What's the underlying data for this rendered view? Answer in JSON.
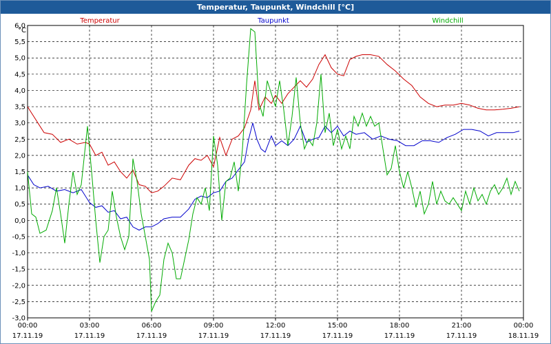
{
  "window": {
    "title": "Temperatur, Taupunkt, Windchill [°C]"
  },
  "chart_data": {
    "type": "line",
    "title": "Temperatur, Taupunkt, Windchill [°C]",
    "ylabel": "°C",
    "ylim": [
      -3.0,
      6.0
    ],
    "yticks": [
      "-3,0",
      "-2,5",
      "-2,0",
      "-1,5",
      "-1,0",
      "-0,5",
      "0,0",
      "0,5",
      "1,0",
      "1,5",
      "2,0",
      "2,5",
      "3,0",
      "3,5",
      "4,0",
      "4,5",
      "5,0",
      "5,5",
      "6,0"
    ],
    "xlim": [
      0,
      24
    ],
    "xticks": [
      {
        "time": "00:00",
        "date": "17.11.19"
      },
      {
        "time": "03:00",
        "date": "17.11.19"
      },
      {
        "time": "06:00",
        "date": "17.11.19"
      },
      {
        "time": "09:00",
        "date": "17.11.19"
      },
      {
        "time": "12:00",
        "date": "17.11.19"
      },
      {
        "time": "15:00",
        "date": "17.11.19"
      },
      {
        "time": "18:00",
        "date": "17.11.19"
      },
      {
        "time": "21:00",
        "date": "17.11.19"
      },
      {
        "time": "00:00",
        "date": "18.11.19"
      }
    ],
    "grid": true,
    "legend_placement": "top",
    "series": [
      {
        "name": "Temperatur",
        "color": "#cc0000",
        "points": [
          [
            0,
            3.5
          ],
          [
            0.5,
            3.0
          ],
          [
            0.8,
            2.7
          ],
          [
            1.2,
            2.65
          ],
          [
            1.6,
            2.4
          ],
          [
            2.0,
            2.5
          ],
          [
            2.4,
            2.35
          ],
          [
            2.8,
            2.4
          ],
          [
            3.0,
            2.35
          ],
          [
            3.3,
            2.0
          ],
          [
            3.6,
            2.1
          ],
          [
            3.9,
            1.7
          ],
          [
            4.2,
            1.8
          ],
          [
            4.5,
            1.5
          ],
          [
            4.8,
            1.3
          ],
          [
            5.1,
            1.55
          ],
          [
            5.4,
            1.1
          ],
          [
            5.7,
            1.05
          ],
          [
            6.0,
            0.85
          ],
          [
            6.3,
            0.9
          ],
          [
            6.6,
            1.05
          ],
          [
            7.0,
            1.3
          ],
          [
            7.4,
            1.25
          ],
          [
            7.8,
            1.7
          ],
          [
            8.1,
            1.9
          ],
          [
            8.4,
            1.85
          ],
          [
            8.7,
            2.0
          ],
          [
            9.0,
            1.65
          ],
          [
            9.3,
            2.55
          ],
          [
            9.6,
            2.0
          ],
          [
            9.9,
            2.5
          ],
          [
            10.2,
            2.6
          ],
          [
            10.5,
            2.85
          ],
          [
            10.8,
            3.4
          ],
          [
            11.0,
            4.3
          ],
          [
            11.2,
            3.4
          ],
          [
            11.5,
            3.8
          ],
          [
            11.8,
            3.6
          ],
          [
            12.0,
            3.85
          ],
          [
            12.3,
            3.6
          ],
          [
            12.6,
            3.9
          ],
          [
            12.9,
            4.1
          ],
          [
            13.2,
            4.3
          ],
          [
            13.5,
            4.1
          ],
          [
            13.8,
            4.35
          ],
          [
            14.1,
            4.8
          ],
          [
            14.4,
            5.1
          ],
          [
            14.7,
            4.7
          ],
          [
            15.0,
            4.5
          ],
          [
            15.3,
            4.45
          ],
          [
            15.6,
            4.95
          ],
          [
            15.9,
            5.05
          ],
          [
            16.2,
            5.1
          ],
          [
            16.6,
            5.1
          ],
          [
            17.0,
            5.05
          ],
          [
            17.4,
            4.8
          ],
          [
            17.8,
            4.6
          ],
          [
            18.2,
            4.35
          ],
          [
            18.6,
            4.15
          ],
          [
            19.0,
            3.8
          ],
          [
            19.4,
            3.6
          ],
          [
            19.8,
            3.5
          ],
          [
            20.2,
            3.55
          ],
          [
            20.6,
            3.55
          ],
          [
            21.0,
            3.6
          ],
          [
            21.4,
            3.55
          ],
          [
            21.8,
            3.45
          ],
          [
            22.2,
            3.4
          ],
          [
            22.6,
            3.4
          ],
          [
            23.0,
            3.42
          ],
          [
            23.4,
            3.45
          ],
          [
            23.8,
            3.5
          ]
        ]
      },
      {
        "name": "Taupunkt",
        "color": "#0000cc",
        "points": [
          [
            0,
            1.4
          ],
          [
            0.3,
            1.1
          ],
          [
            0.6,
            1.0
          ],
          [
            1.0,
            1.05
          ],
          [
            1.4,
            0.9
          ],
          [
            1.8,
            0.95
          ],
          [
            2.2,
            0.85
          ],
          [
            2.6,
            0.95
          ],
          [
            3.0,
            0.55
          ],
          [
            3.3,
            0.4
          ],
          [
            3.6,
            0.45
          ],
          [
            3.9,
            0.25
          ],
          [
            4.2,
            0.3
          ],
          [
            4.5,
            0.05
          ],
          [
            4.8,
            0.1
          ],
          [
            5.1,
            -0.2
          ],
          [
            5.4,
            -0.3
          ],
          [
            5.7,
            -0.2
          ],
          [
            6.0,
            -0.2
          ],
          [
            6.3,
            -0.1
          ],
          [
            6.6,
            0.05
          ],
          [
            7.0,
            0.1
          ],
          [
            7.4,
            0.1
          ],
          [
            7.8,
            0.35
          ],
          [
            8.1,
            0.65
          ],
          [
            8.4,
            0.75
          ],
          [
            8.7,
            0.7
          ],
          [
            9.0,
            0.85
          ],
          [
            9.3,
            0.9
          ],
          [
            9.6,
            1.2
          ],
          [
            9.9,
            1.3
          ],
          [
            10.2,
            1.55
          ],
          [
            10.5,
            1.8
          ],
          [
            10.7,
            2.5
          ],
          [
            10.9,
            3.0
          ],
          [
            11.1,
            2.5
          ],
          [
            11.3,
            2.2
          ],
          [
            11.5,
            2.1
          ],
          [
            11.8,
            2.6
          ],
          [
            12.0,
            2.3
          ],
          [
            12.3,
            2.45
          ],
          [
            12.6,
            2.3
          ],
          [
            12.9,
            2.5
          ],
          [
            13.2,
            2.9
          ],
          [
            13.5,
            2.4
          ],
          [
            13.8,
            2.5
          ],
          [
            14.1,
            2.55
          ],
          [
            14.4,
            2.9
          ],
          [
            14.7,
            2.7
          ],
          [
            15.0,
            2.9
          ],
          [
            15.3,
            2.6
          ],
          [
            15.6,
            2.75
          ],
          [
            15.9,
            2.65
          ],
          [
            16.3,
            2.7
          ],
          [
            16.7,
            2.5
          ],
          [
            17.1,
            2.6
          ],
          [
            17.5,
            2.5
          ],
          [
            17.9,
            2.45
          ],
          [
            18.3,
            2.3
          ],
          [
            18.7,
            2.3
          ],
          [
            19.1,
            2.45
          ],
          [
            19.5,
            2.45
          ],
          [
            19.9,
            2.4
          ],
          [
            20.3,
            2.55
          ],
          [
            20.7,
            2.65
          ],
          [
            21.1,
            2.8
          ],
          [
            21.5,
            2.8
          ],
          [
            21.9,
            2.75
          ],
          [
            22.3,
            2.6
          ],
          [
            22.7,
            2.7
          ],
          [
            23.1,
            2.7
          ],
          [
            23.5,
            2.7
          ],
          [
            23.8,
            2.75
          ]
        ]
      },
      {
        "name": "Windchill",
        "color": "#00aa00",
        "points": [
          [
            0,
            1.5
          ],
          [
            0.2,
            0.2
          ],
          [
            0.4,
            0.1
          ],
          [
            0.6,
            -0.4
          ],
          [
            0.9,
            -0.3
          ],
          [
            1.2,
            0.3
          ],
          [
            1.4,
            1.0
          ],
          [
            1.6,
            0.2
          ],
          [
            1.8,
            -0.7
          ],
          [
            2.0,
            0.5
          ],
          [
            2.2,
            1.5
          ],
          [
            2.4,
            0.8
          ],
          [
            2.6,
            1.1
          ],
          [
            2.9,
            2.9
          ],
          [
            3.1,
            1.5
          ],
          [
            3.3,
            0.0
          ],
          [
            3.5,
            -1.3
          ],
          [
            3.7,
            -0.5
          ],
          [
            3.9,
            -0.3
          ],
          [
            4.1,
            0.9
          ],
          [
            4.3,
            0.1
          ],
          [
            4.5,
            -0.5
          ],
          [
            4.7,
            -0.9
          ],
          [
            4.9,
            -0.5
          ],
          [
            5.1,
            1.9
          ],
          [
            5.3,
            1.2
          ],
          [
            5.5,
            0.2
          ],
          [
            5.7,
            -0.5
          ],
          [
            5.9,
            -1.2
          ],
          [
            6.0,
            -2.8
          ],
          [
            6.2,
            -2.5
          ],
          [
            6.4,
            -2.3
          ],
          [
            6.6,
            -1.2
          ],
          [
            6.8,
            -0.7
          ],
          [
            7.0,
            -1.0
          ],
          [
            7.2,
            -1.8
          ],
          [
            7.4,
            -1.8
          ],
          [
            7.6,
            -1.2
          ],
          [
            7.8,
            -0.6
          ],
          [
            8.0,
            0.2
          ],
          [
            8.2,
            0.7
          ],
          [
            8.4,
            0.5
          ],
          [
            8.6,
            1.0
          ],
          [
            8.8,
            0.3
          ],
          [
            9.0,
            2.6
          ],
          [
            9.2,
            1.7
          ],
          [
            9.4,
            0.0
          ],
          [
            9.6,
            1.2
          ],
          [
            9.8,
            1.3
          ],
          [
            10.0,
            1.8
          ],
          [
            10.2,
            0.9
          ],
          [
            10.4,
            2.2
          ],
          [
            10.6,
            4.2
          ],
          [
            10.8,
            5.9
          ],
          [
            11.0,
            5.8
          ],
          [
            11.2,
            3.6
          ],
          [
            11.4,
            3.2
          ],
          [
            11.6,
            4.3
          ],
          [
            11.8,
            3.9
          ],
          [
            12.0,
            3.5
          ],
          [
            12.2,
            4.3
          ],
          [
            12.4,
            3.4
          ],
          [
            12.6,
            2.3
          ],
          [
            12.8,
            3.2
          ],
          [
            13.0,
            4.4
          ],
          [
            13.2,
            3.0
          ],
          [
            13.4,
            2.2
          ],
          [
            13.6,
            2.5
          ],
          [
            13.8,
            2.3
          ],
          [
            14.0,
            3.0
          ],
          [
            14.2,
            4.5
          ],
          [
            14.4,
            2.7
          ],
          [
            14.6,
            3.3
          ],
          [
            14.8,
            2.3
          ],
          [
            15.0,
            2.8
          ],
          [
            15.2,
            2.2
          ],
          [
            15.4,
            2.6
          ],
          [
            15.6,
            2.2
          ],
          [
            15.8,
            3.2
          ],
          [
            16.0,
            2.9
          ],
          [
            16.2,
            3.3
          ],
          [
            16.4,
            2.9
          ],
          [
            16.6,
            3.2
          ],
          [
            16.8,
            2.9
          ],
          [
            17.0,
            3.0
          ],
          [
            17.2,
            2.2
          ],
          [
            17.4,
            1.4
          ],
          [
            17.6,
            1.6
          ],
          [
            17.8,
            2.3
          ],
          [
            18.0,
            1.5
          ],
          [
            18.2,
            1.0
          ],
          [
            18.4,
            1.5
          ],
          [
            18.6,
            1.0
          ],
          [
            18.8,
            0.4
          ],
          [
            19.0,
            0.9
          ],
          [
            19.2,
            0.2
          ],
          [
            19.4,
            0.5
          ],
          [
            19.6,
            1.2
          ],
          [
            19.8,
            0.5
          ],
          [
            20.0,
            0.9
          ],
          [
            20.2,
            0.6
          ],
          [
            20.4,
            0.5
          ],
          [
            20.6,
            0.7
          ],
          [
            20.8,
            0.5
          ],
          [
            21.0,
            0.3
          ],
          [
            21.2,
            0.9
          ],
          [
            21.4,
            0.5
          ],
          [
            21.6,
            1.0
          ],
          [
            21.8,
            0.6
          ],
          [
            22.0,
            0.8
          ],
          [
            22.2,
            0.5
          ],
          [
            22.4,
            0.9
          ],
          [
            22.6,
            1.1
          ],
          [
            22.8,
            0.8
          ],
          [
            23.0,
            1.0
          ],
          [
            23.2,
            1.3
          ],
          [
            23.4,
            0.8
          ],
          [
            23.6,
            1.2
          ],
          [
            23.8,
            0.9
          ]
        ]
      }
    ]
  }
}
